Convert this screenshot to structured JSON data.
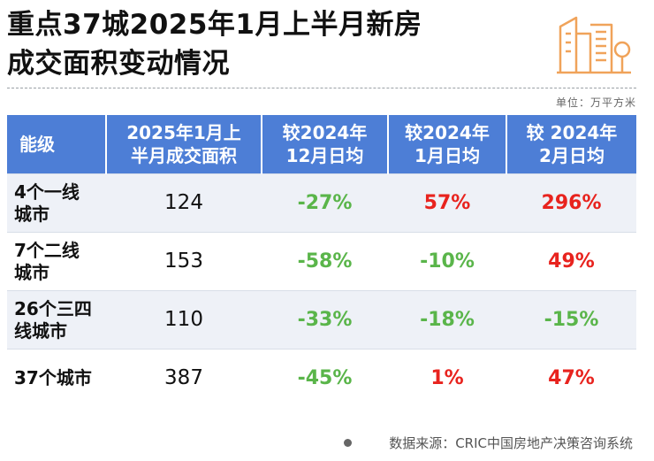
{
  "header": {
    "title_line1": "重点37城2025年1月上半月新房",
    "title_line2": "成交面积变动情况",
    "logo_icon": "buildings-icon",
    "unit": "单位：万平方米"
  },
  "table": {
    "columns": [
      {
        "line1": "能级",
        "line2": ""
      },
      {
        "line1": "2025年1月上",
        "line2": "半月成交面积"
      },
      {
        "line1": "较2024年",
        "line2": "12月日均"
      },
      {
        "line1": "较2024年",
        "line2": "1月日均"
      },
      {
        "line1": "较 2024年",
        "line2": "2月日均"
      }
    ],
    "rows": [
      {
        "region_line1": "4个一线",
        "region_line2": "城市",
        "area": "124",
        "vs_dec": "-27%",
        "vs_jan": "57%",
        "vs_feb": "296%"
      },
      {
        "region_line1": "7个二线",
        "region_line2": "城市",
        "area": "153",
        "vs_dec": "-58%",
        "vs_jan": "-10%",
        "vs_feb": "49%"
      },
      {
        "region_line1": "26个三四",
        "region_line2": "线城市",
        "area": "110",
        "vs_dec": "-33%",
        "vs_jan": "-18%",
        "vs_feb": "-15%"
      },
      {
        "region_line1": "37个城市",
        "region_line2": "",
        "area": "387",
        "vs_dec": "-45%",
        "vs_jan": "1%",
        "vs_feb": "47%"
      }
    ]
  },
  "footer": {
    "source": "数据来源：CRIC中国房地产决策咨询系统"
  },
  "colors": {
    "header_bg": "#4d7ed6",
    "increase": "#e8231e",
    "decrease": "#5ab54a",
    "logo": "#f0a35a"
  }
}
